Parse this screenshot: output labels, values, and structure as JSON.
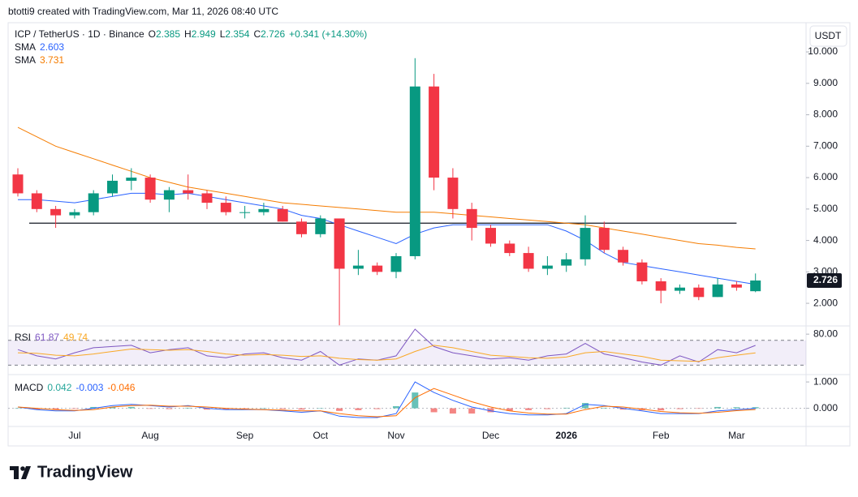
{
  "header": {
    "caption": "btotti9 created with TradingView.com, Mar 11, 2026 08:40 UTC"
  },
  "chart_data": {
    "type": "candlestick",
    "symbol": "ICP / TetherUS · 1D · Binance",
    "ohlc_letters": [
      "O",
      "H",
      "L",
      "C"
    ],
    "change": "+0.341 (+14.30%)",
    "currency": "USDT",
    "up_color": "#089981",
    "down_color": "#f23645",
    "categories": [
      null,
      null,
      null,
      "Jul",
      null,
      null,
      null,
      "Aug",
      null,
      null,
      null,
      null,
      "Sep",
      null,
      null,
      null,
      "Oct",
      null,
      null,
      null,
      "Nov",
      null,
      null,
      null,
      null,
      "Dec",
      null,
      null,
      null,
      "2026",
      null,
      null,
      null,
      null,
      "Feb",
      null,
      null,
      null,
      "Mar",
      null
    ],
    "open": [
      6.1,
      5.5,
      5.0,
      4.8,
      4.9,
      5.5,
      5.9,
      6.0,
      5.3,
      5.6,
      5.5,
      5.2,
      4.9,
      4.9,
      5.0,
      4.6,
      4.2,
      4.7,
      3.1,
      3.2,
      3.0,
      3.5,
      8.9,
      6.0,
      5.0,
      4.4,
      3.9,
      3.6,
      3.1,
      3.2,
      3.4,
      4.4,
      3.7,
      3.3,
      2.7,
      2.4,
      2.5,
      2.2,
      2.6,
      2.385
    ],
    "high": [
      6.3,
      5.6,
      5.1,
      5.0,
      5.6,
      6.1,
      6.3,
      6.1,
      5.7,
      6.1,
      5.6,
      5.4,
      5.1,
      5.2,
      5.1,
      4.7,
      4.8,
      4.7,
      3.7,
      3.3,
      3.6,
      9.8,
      9.3,
      6.3,
      5.2,
      4.5,
      4.0,
      3.8,
      3.5,
      3.6,
      4.8,
      4.6,
      3.8,
      3.4,
      2.8,
      2.6,
      2.6,
      2.8,
      2.7,
      2.949
    ],
    "low": [
      5.4,
      4.9,
      4.4,
      4.7,
      4.8,
      5.4,
      5.6,
      5.2,
      4.9,
      5.3,
      5.0,
      4.8,
      4.7,
      4.8,
      4.6,
      4.1,
      4.1,
      1.3,
      2.9,
      2.9,
      2.8,
      3.4,
      5.6,
      4.7,
      4.0,
      3.8,
      3.5,
      3.0,
      2.9,
      3.0,
      3.2,
      3.6,
      3.2,
      2.6,
      2.0,
      2.3,
      2.1,
      2.2,
      2.4,
      2.354
    ],
    "close": [
      5.5,
      5.0,
      4.8,
      4.9,
      5.5,
      5.9,
      6.0,
      5.3,
      5.6,
      5.5,
      5.2,
      4.9,
      4.9,
      5.0,
      4.6,
      4.2,
      4.7,
      3.1,
      3.2,
      3.0,
      3.5,
      8.9,
      6.0,
      5.0,
      4.4,
      3.9,
      3.6,
      3.1,
      3.2,
      3.4,
      4.4,
      3.7,
      3.3,
      2.7,
      2.4,
      2.5,
      2.2,
      2.6,
      2.5,
      2.726
    ],
    "ylim": [
      1.28,
      10.93
    ],
    "yticks": [
      {
        "value": 2,
        "label": "2.000"
      },
      {
        "value": 3,
        "label": "3.000"
      },
      {
        "value": 4,
        "label": "4.000"
      },
      {
        "value": 5,
        "label": "5.000"
      },
      {
        "value": 6,
        "label": "6.000"
      },
      {
        "value": 7,
        "label": "7.000"
      },
      {
        "value": 8,
        "label": "8.000"
      },
      {
        "value": 9,
        "label": "9.000"
      },
      {
        "value": 10,
        "label": "10.000"
      }
    ],
    "horizontal_line": 4.55,
    "overlays": [
      {
        "name": "SMA",
        "color": "#2962ff",
        "values": [
          5.3,
          5.3,
          5.25,
          5.2,
          5.3,
          5.4,
          5.5,
          5.5,
          5.45,
          5.5,
          5.4,
          5.3,
          5.2,
          5.1,
          5.0,
          4.8,
          4.7,
          4.5,
          4.3,
          4.1,
          3.9,
          4.2,
          4.4,
          4.5,
          4.5,
          4.5,
          4.5,
          4.5,
          4.5,
          4.3,
          4.0,
          3.6,
          3.3,
          3.2,
          3.1,
          3.0,
          2.9,
          2.8,
          2.7,
          2.603
        ]
      },
      {
        "name": "SMA",
        "color": "#f57c00",
        "values": [
          7.6,
          7.3,
          7.0,
          6.8,
          6.6,
          6.4,
          6.2,
          6.0,
          5.85,
          5.7,
          5.6,
          5.5,
          5.4,
          5.3,
          5.2,
          5.15,
          5.1,
          5.05,
          5.0,
          4.95,
          4.9,
          4.9,
          4.9,
          4.85,
          4.8,
          4.75,
          4.7,
          4.65,
          4.6,
          4.55,
          4.5,
          4.4,
          4.3,
          4.2,
          4.1,
          4.0,
          3.9,
          3.85,
          3.78,
          3.731
        ]
      }
    ],
    "rsi": {
      "label": "RSI",
      "color": "#7e57c2",
      "signal_color": "#f9a825",
      "ylim": [
        14.7,
        93.3
      ],
      "yticks": [
        {
          "value": 80,
          "label": "80.00"
        }
      ],
      "bands": [
        30,
        70
      ],
      "values": [
        55,
        45,
        40,
        50,
        58,
        60,
        62,
        50,
        55,
        58,
        45,
        42,
        48,
        50,
        42,
        38,
        52,
        30,
        40,
        38,
        45,
        88,
        60,
        50,
        45,
        40,
        42,
        38,
        45,
        48,
        65,
        48,
        42,
        35,
        30,
        45,
        35,
        55,
        50,
        61.87
      ],
      "signal": [
        50,
        49,
        46,
        45,
        48,
        52,
        56,
        55,
        54,
        55,
        52,
        48,
        46,
        47,
        46,
        44,
        45,
        41,
        39,
        38,
        40,
        52,
        62,
        58,
        52,
        46,
        44,
        42,
        41,
        43,
        50,
        52,
        48,
        44,
        38,
        37,
        36,
        42,
        46,
        49.74
      ]
    },
    "macd": {
      "label": "MACD",
      "hist_up_color": "#26a69a",
      "hist_down_color": "#ef5350",
      "macd_color": "#2962ff",
      "signal_color": "#ff6d00",
      "ylim": [
        -0.69,
        1.28
      ],
      "yticks": [
        {
          "value": 1,
          "label": "1.000"
        },
        {
          "value": 0,
          "label": "0.000"
        }
      ],
      "histogram": [
        0,
        -0.05,
        -0.05,
        -0.02,
        0.05,
        0.05,
        0.05,
        -0.02,
        -0.03,
        0.02,
        -0.05,
        -0.05,
        -0.02,
        0,
        -0.03,
        -0.05,
        0,
        -0.1,
        -0.07,
        -0.03,
        0.08,
        0.6,
        -0.15,
        -0.2,
        -0.2,
        -0.15,
        -0.1,
        -0.07,
        -0.03,
        0.02,
        0.2,
        0.02,
        -0.05,
        -0.07,
        -0.08,
        -0.03,
        -0.01,
        0.05,
        0.04,
        0.042
      ],
      "macd": [
        0.05,
        -0.05,
        -0.1,
        -0.1,
        0.0,
        0.1,
        0.15,
        0.1,
        0.05,
        0.1,
        0.0,
        -0.05,
        -0.05,
        -0.05,
        -0.1,
        -0.15,
        -0.1,
        -0.3,
        -0.35,
        -0.35,
        -0.2,
        1.0,
        0.6,
        0.3,
        0.05,
        -0.1,
        -0.2,
        -0.25,
        -0.25,
        -0.2,
        0.15,
        0.1,
        0.0,
        -0.1,
        -0.2,
        -0.2,
        -0.2,
        -0.1,
        -0.05,
        -0.003
      ],
      "signal": [
        0.05,
        0.0,
        -0.05,
        -0.08,
        -0.05,
        0.05,
        0.1,
        0.12,
        0.08,
        0.08,
        0.05,
        0.0,
        -0.03,
        -0.05,
        -0.07,
        -0.1,
        -0.1,
        -0.2,
        -0.28,
        -0.32,
        -0.28,
        0.4,
        0.75,
        0.5,
        0.25,
        0.05,
        -0.1,
        -0.18,
        -0.22,
        -0.22,
        -0.05,
        0.08,
        0.05,
        -0.03,
        -0.12,
        -0.17,
        -0.19,
        -0.15,
        -0.09,
        -0.046
      ]
    }
  },
  "footer": {
    "brand": "TradingView"
  }
}
